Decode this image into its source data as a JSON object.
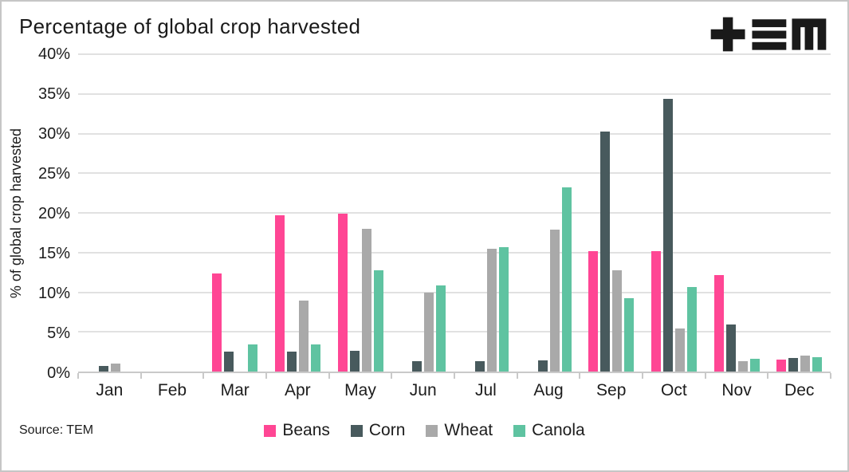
{
  "header": {
    "logo_name": "TEM logo"
  },
  "footer": {
    "source": "Source: TEM"
  },
  "colors": {
    "beans": "#ff4694",
    "corn": "#485a5d",
    "wheat": "#a9a9a9",
    "canola": "#5fc3a1",
    "gridline": "#e1e1e1",
    "axis": "#c9c9c9",
    "text": "#1c1c1c"
  },
  "chart_data": {
    "type": "bar",
    "title": "Percentage of global crop harvested",
    "xlabel": "",
    "ylabel": "% of global crop harvested",
    "ylim": [
      0,
      40
    ],
    "ytick_step": 5,
    "yticks": [
      "0%",
      "5%",
      "10%",
      "15%",
      "20%",
      "25%",
      "30%",
      "35%",
      "40%"
    ],
    "grid": true,
    "legend_position": "bottom",
    "categories": [
      "Jan",
      "Feb",
      "Mar",
      "Apr",
      "May",
      "Jun",
      "Jul",
      "Aug",
      "Sep",
      "Oct",
      "Nov",
      "Dec"
    ],
    "series": [
      {
        "name": "Beans",
        "color": "#ff4694",
        "values": [
          0,
          0,
          12.4,
          19.7,
          19.9,
          0,
          0,
          0,
          15.2,
          15.2,
          12.2,
          1.5
        ]
      },
      {
        "name": "Corn",
        "color": "#485a5d",
        "values": [
          0.7,
          0,
          2.5,
          2.5,
          2.6,
          1.3,
          1.3,
          1.4,
          30.3,
          34.4,
          5.9,
          1.7
        ]
      },
      {
        "name": "Wheat",
        "color": "#a9a9a9",
        "values": [
          1.0,
          0,
          0,
          8.9,
          18.0,
          10.0,
          15.5,
          17.9,
          12.8,
          5.4,
          1.3,
          2.0
        ]
      },
      {
        "name": "Canola",
        "color": "#5fc3a1",
        "values": [
          0,
          0,
          3.4,
          3.4,
          12.8,
          10.9,
          15.7,
          23.2,
          9.2,
          10.7,
          1.6,
          1.8
        ]
      }
    ]
  }
}
